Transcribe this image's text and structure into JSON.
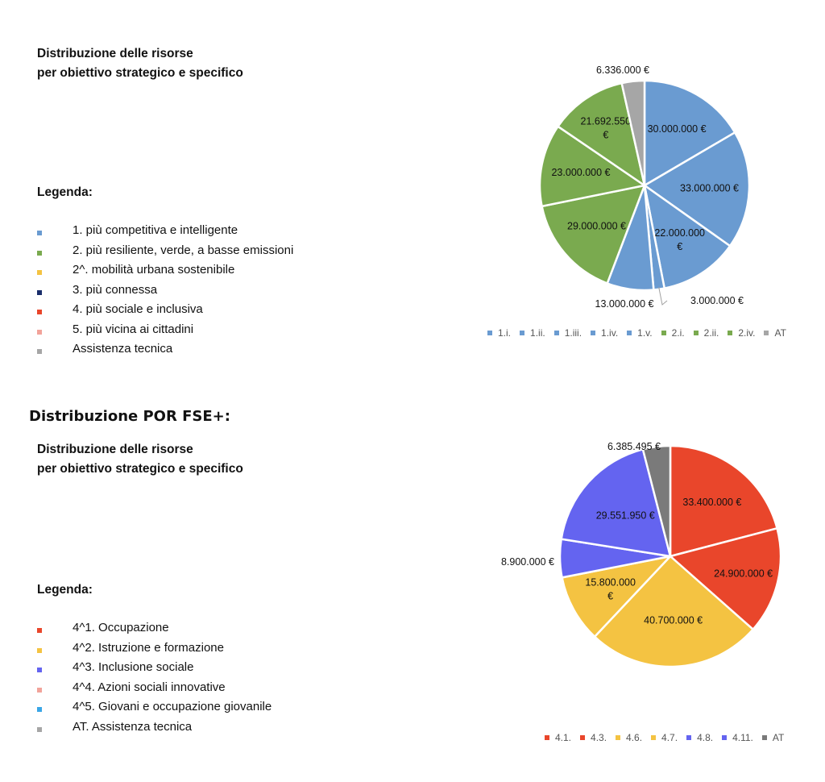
{
  "fesr": {
    "title_line1": "Distribuzione delle risorse",
    "title_line2": "per obiettivo strategico e specifico",
    "legend_heading": "Legenda:",
    "legend_items": [
      {
        "label": "1. più competitiva e intelligente",
        "color": "#6a9bd1"
      },
      {
        "label": "2. più resiliente, verde, a basse emissioni",
        "color": "#7aaa4f"
      },
      {
        "label": "2^. mobilità urbana sostenibile",
        "color": "#f4c342"
      },
      {
        "label": "3. più connessa",
        "color": "#1a2e6b"
      },
      {
        "label": "4. più sociale e inclusiva",
        "color": "#e9462b"
      },
      {
        "label": "5. più vicina ai cittadini",
        "color": "#f2a39a"
      },
      {
        "label": "Assistenza tecnica",
        "color": "#a6a6a6"
      }
    ]
  },
  "fse": {
    "section_heading": "Distribuzione POR FSE+:",
    "title_line1": "Distribuzione delle risorse",
    "title_line2": "per obiettivo strategico e specifico",
    "legend_heading": "Legenda:",
    "legend_items": [
      {
        "label": "4^1. Occupazione",
        "color": "#e9462b"
      },
      {
        "label": "4^2. Istruzione e formazione",
        "color": "#f4c342"
      },
      {
        "label": "4^3. Inclusione sociale",
        "color": "#6464f0"
      },
      {
        "label": "4^4. Azioni sociali innovative",
        "color": "#f2a39a"
      },
      {
        "label": "4^5. Giovani e occupazione giovanile",
        "color": "#3aa6e6"
      },
      {
        "label": "AT. Assistenza tecnica",
        "color": "#a6a6a6"
      }
    ]
  },
  "chart_data": [
    {
      "type": "pie",
      "title": "",
      "legend_position": "bottom",
      "series": [
        {
          "name": "1.i.",
          "value": 30000000,
          "label": "30.000.000 €",
          "color": "#6a9bd1"
        },
        {
          "name": "1.ii.",
          "value": 33000000,
          "label": "33.000.000 €",
          "color": "#6a9bd1"
        },
        {
          "name": "1.iii.",
          "value": 22000000,
          "label_lines": [
            "22.000.000",
            "€"
          ],
          "color": "#6a9bd1"
        },
        {
          "name": "1.iv.",
          "value": 3000000,
          "label": "3.000.000 €",
          "color": "#6a9bd1"
        },
        {
          "name": "1.v.",
          "value": 13000000,
          "label": "13.000.000 €",
          "color": "#6a9bd1"
        },
        {
          "name": "2.i.",
          "value": 29000000,
          "label": "29.000.000 €",
          "color": "#7aaa4f"
        },
        {
          "name": "2.ii.",
          "value": 23000000,
          "label": "23.000.000 €",
          "color": "#7aaa4f"
        },
        {
          "name": "2.iv.",
          "value": 21692550,
          "label_lines": [
            "21.692.550",
            "€"
          ],
          "color": "#7aaa4f"
        },
        {
          "name": "AT",
          "value": 6336000,
          "label": "6.336.000 €",
          "color": "#a6a6a6"
        }
      ]
    },
    {
      "type": "pie",
      "title": "",
      "legend_position": "bottom",
      "series": [
        {
          "name": "4.1.",
          "value": 33400000,
          "label": "33.400.000 €",
          "color": "#e9462b"
        },
        {
          "name": "4.3.",
          "value": 24900000,
          "label": "24.900.000 €",
          "color": "#e9462b"
        },
        {
          "name": "4.6.",
          "value": 40700000,
          "label": "40.700.000 €",
          "color": "#f4c342"
        },
        {
          "name": "4.7.",
          "value": 15800000,
          "label_lines": [
            "15.800.000",
            "€"
          ],
          "color": "#f4c342"
        },
        {
          "name": "4.8.",
          "value": 8900000,
          "label": "8.900.000 €",
          "color": "#6464f0"
        },
        {
          "name": "4.11.",
          "value": 29551950,
          "label": "29.551.950 €",
          "color": "#6464f0"
        },
        {
          "name": "AT",
          "value": 6385495,
          "label": "6.385.495 €",
          "color": "#7a7a7a"
        }
      ]
    }
  ]
}
